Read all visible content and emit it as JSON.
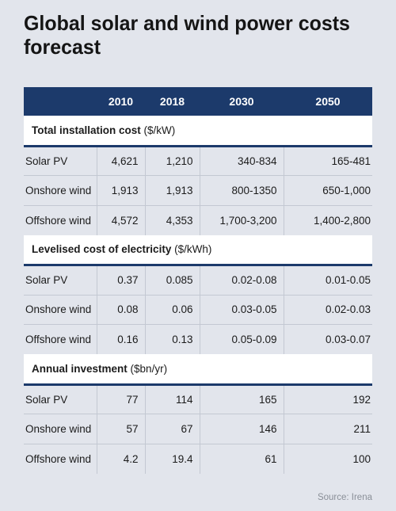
{
  "title": "Global solar and wind power costs forecast",
  "source": "Source: Irena",
  "chart_data": {
    "type": "table",
    "columns": [
      "",
      "2010",
      "2018",
      "2030",
      "2050"
    ],
    "sections": [
      {
        "title": "Total installation cost",
        "unit": "($/kW)",
        "rows": [
          {
            "label": "Solar PV",
            "values": [
              "4,621",
              "1,210",
              "340-834",
              "165-481"
            ]
          },
          {
            "label": "Onshore wind",
            "values": [
              "1,913",
              "1,913",
              "800-1350",
              "650-1,000"
            ]
          },
          {
            "label": "Offshore wind",
            "values": [
              "4,572",
              "4,353",
              "1,700-3,200",
              "1,400-2,800"
            ]
          }
        ]
      },
      {
        "title": "Levelised cost of electricity",
        "unit": "($/kWh)",
        "rows": [
          {
            "label": "Solar PV",
            "values": [
              "0.37",
              "0.085",
              "0.02-0.08",
              "0.01-0.05"
            ]
          },
          {
            "label": "Onshore wind",
            "values": [
              "0.08",
              "0.06",
              "0.03-0.05",
              "0.02-0.03"
            ]
          },
          {
            "label": "Offshore wind",
            "values": [
              "0.16",
              "0.13",
              "0.05-0.09",
              "0.03-0.07"
            ]
          }
        ]
      },
      {
        "title": "Annual investment",
        "unit": "($bn/yr)",
        "rows": [
          {
            "label": "Solar PV",
            "values": [
              "77",
              "114",
              "165",
              "192"
            ]
          },
          {
            "label": "Onshore wind",
            "values": [
              "57",
              "67",
              "146",
              "211"
            ]
          },
          {
            "label": "Offshore wind",
            "values": [
              "4.2",
              "19.4",
              "61",
              "100"
            ]
          }
        ]
      }
    ]
  },
  "colors": {
    "header_bg": "#1c3a6b",
    "page_bg": "#e2e5ec",
    "section_bg": "#ffffff"
  }
}
